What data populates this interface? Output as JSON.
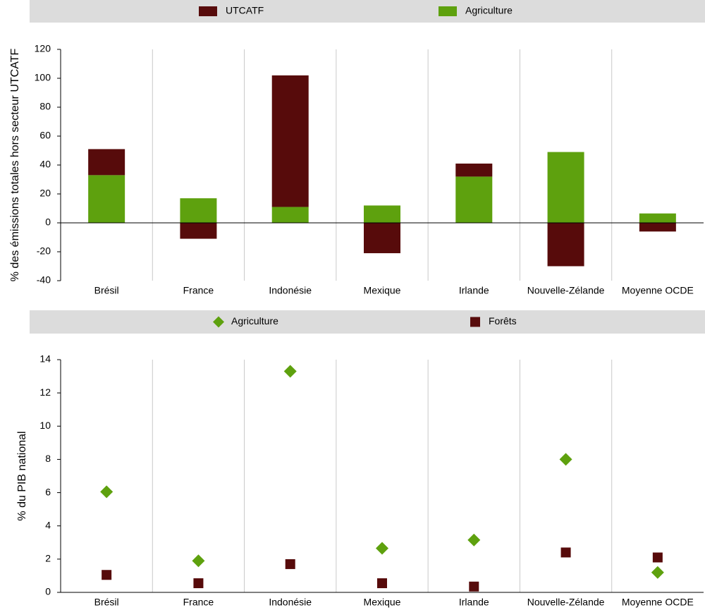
{
  "chart_data": [
    {
      "type": "bar",
      "stacked": true,
      "ylabel": "% des émissions totales hors secteur UTCATF",
      "categories": [
        "Brésil",
        "France",
        "Indonésie",
        "Mexique",
        "Irlande",
        "Nouvelle-Zélande",
        "Moyenne OCDE"
      ],
      "series": [
        {
          "name": "UTCATF",
          "color": "#570b0b",
          "values": [
            18,
            -11,
            91,
            -21,
            9,
            -30,
            -6
          ]
        },
        {
          "name": "Agriculture",
          "color": "#5ea10e",
          "values": [
            33,
            17,
            11,
            12,
            32,
            49,
            6.5
          ]
        }
      ],
      "ylim": [
        -40,
        120
      ],
      "yticks": [
        -40,
        -20,
        0,
        20,
        40,
        60,
        80,
        100,
        120
      ]
    },
    {
      "type": "scatter",
      "ylabel": "% du PIB national",
      "categories": [
        "Brésil",
        "France",
        "Indonésie",
        "Mexique",
        "Irlande",
        "Nouvelle-Zélande",
        "Moyenne OCDE"
      ],
      "series": [
        {
          "name": "Agriculture",
          "color": "#5ea10e",
          "marker": "diamond",
          "values": [
            6.05,
            1.9,
            13.3,
            2.65,
            3.15,
            8.0,
            1.2
          ]
        },
        {
          "name": "Forêts",
          "color": "#570b0b",
          "marker": "square",
          "values": [
            1.05,
            0.55,
            1.7,
            0.55,
            0.35,
            2.4,
            2.1
          ]
        }
      ],
      "ylim": [
        0,
        14
      ],
      "yticks": [
        0,
        2,
        4,
        6,
        8,
        10,
        12,
        14
      ]
    }
  ]
}
